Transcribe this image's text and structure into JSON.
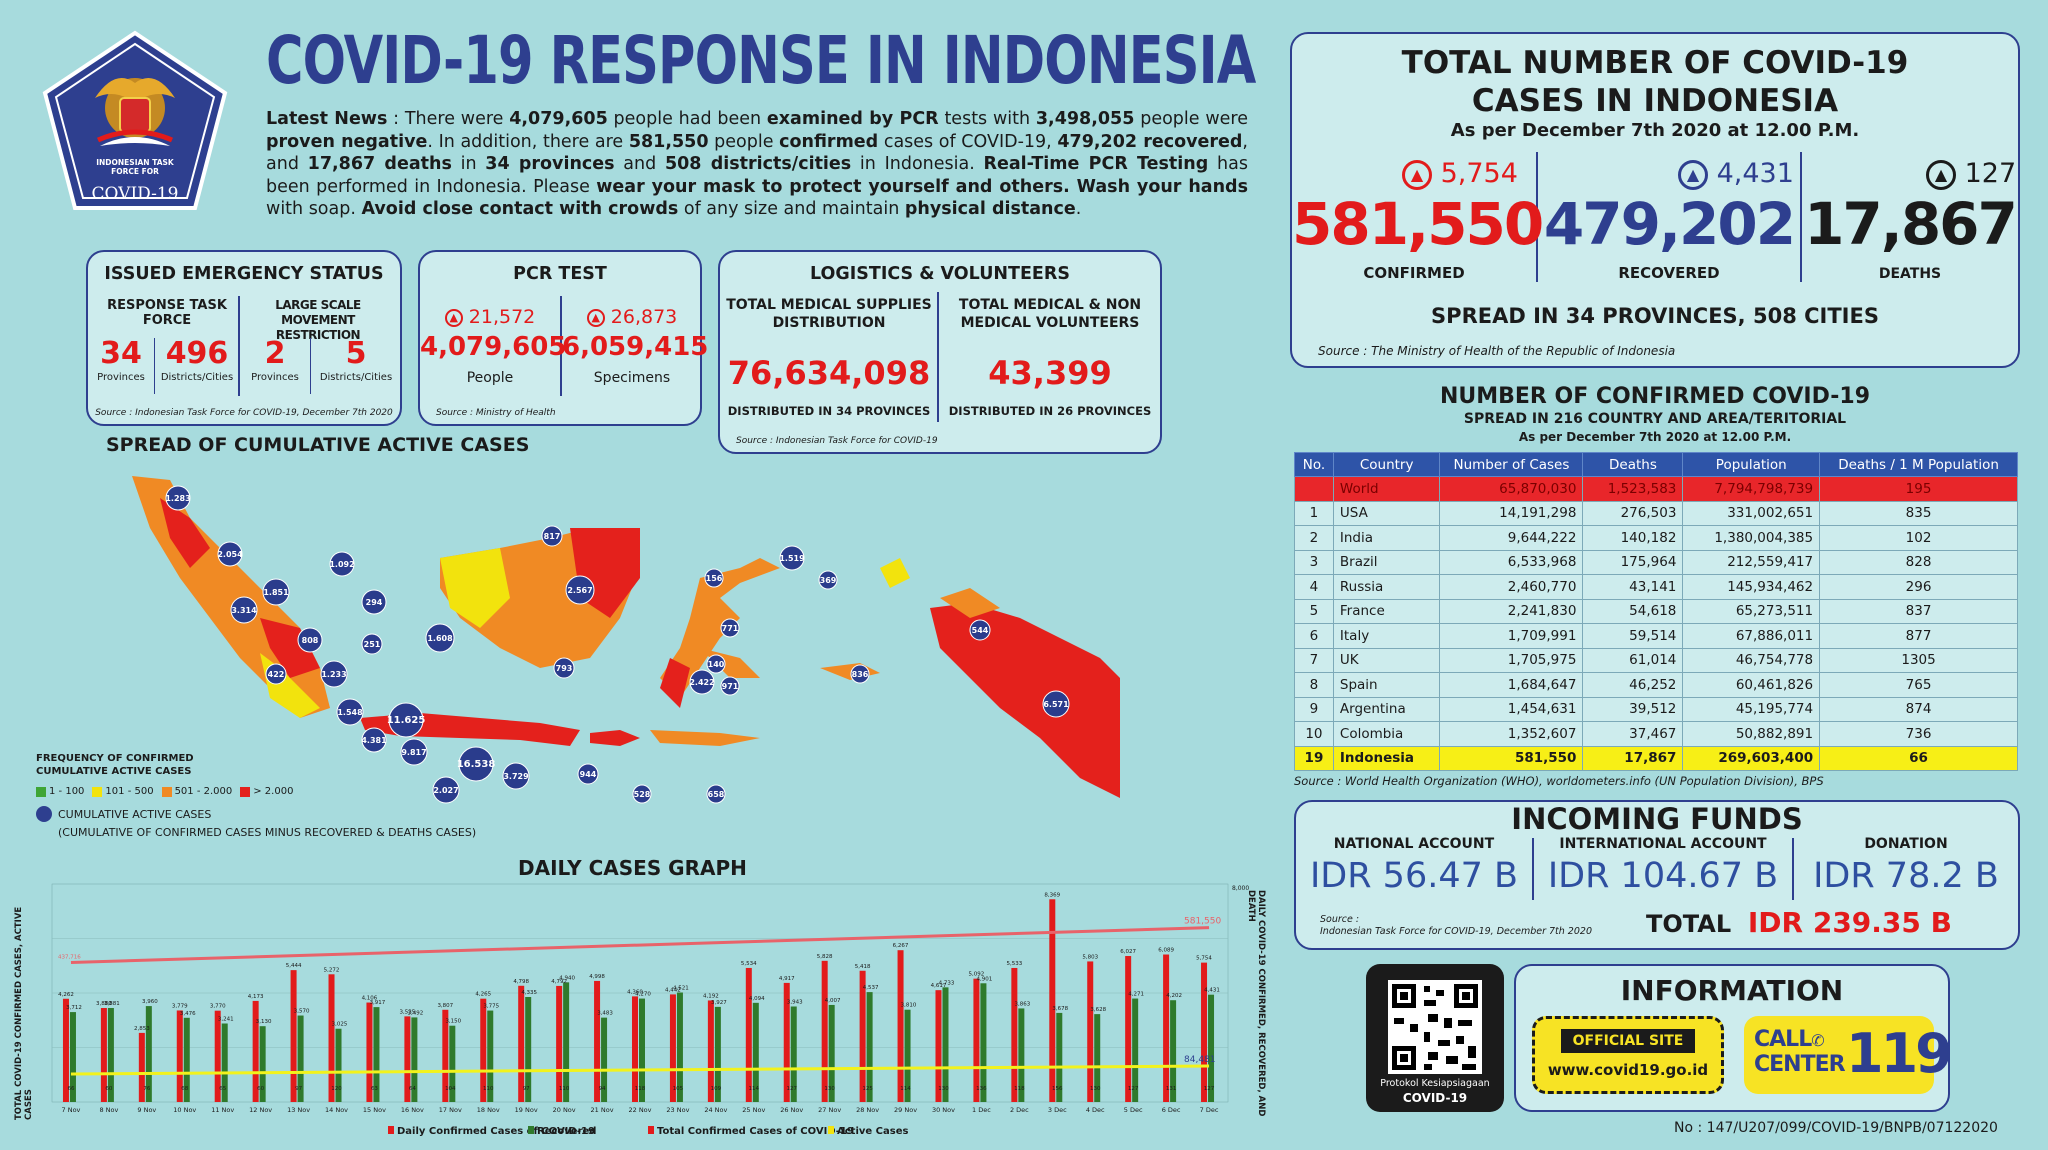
{
  "header": {
    "title": "COVID-19 RESPONSE IN INDONESIA",
    "logo_text_1": "INDONESIAN TASK",
    "logo_text_2": "FORCE FOR",
    "logo_text_3": "COVID-19",
    "news": [
      {
        "t": "Latest News",
        "b": true
      },
      {
        "t": " : There were ",
        "b": false
      },
      {
        "t": "4,079,605",
        "b": true
      },
      {
        "t": " people had been ",
        "b": false
      },
      {
        "t": "examined by PCR",
        "b": true
      },
      {
        "t": " tests with ",
        "b": false
      },
      {
        "t": "3,498,055",
        "b": true
      },
      {
        "t": " people were ",
        "b": false
      },
      {
        "t": "proven negative",
        "b": true
      },
      {
        "t": ". In addition, there are ",
        "b": false
      },
      {
        "t": "581,550",
        "b": true
      },
      {
        "t": " people ",
        "b": false
      },
      {
        "t": "confirmed",
        "b": true
      },
      {
        "t": " cases of COVID-19, ",
        "b": false
      },
      {
        "t": "479,202 recovered",
        "b": true
      },
      {
        "t": ", and ",
        "b": false
      },
      {
        "t": "17,867 deaths",
        "b": true
      },
      {
        "t": " in ",
        "b": false
      },
      {
        "t": "34 provinces",
        "b": true
      },
      {
        "t": " and ",
        "b": false
      },
      {
        "t": "508 districts/cities",
        "b": true
      },
      {
        "t": " in Indonesia. ",
        "b": false
      },
      {
        "t": "Real-Time PCR Testing",
        "b": true
      },
      {
        "t": " has been performed in Indonesia. Please ",
        "b": false
      },
      {
        "t": "wear your mask to protect yourself and others. Wash your hands",
        "b": true
      },
      {
        "t": " with soap. ",
        "b": false
      },
      {
        "t": "Avoid close contact with crowds",
        "b": true
      },
      {
        "t": " of any size and maintain ",
        "b": false
      },
      {
        "t": "physical distance",
        "b": true
      },
      {
        "t": ".",
        "b": false
      }
    ]
  },
  "emergency": {
    "title": "ISSUED EMERGENCY STATUS",
    "col1_label": "RESPONSE TASK FORCE",
    "col2_label": "LARGE SCALE MOVEMENT RESTRICTION",
    "v1": "34",
    "l1": "Provinces",
    "v2": "496",
    "l2": "Districts/Cities",
    "v3": "2",
    "l3": "Provinces",
    "v4": "5",
    "l4": "Districts/Cities",
    "source": "Source : Indonesian Task Force for COVID-19, December 7th 2020"
  },
  "pcr": {
    "title": "PCR TEST",
    "inc1": "21,572",
    "inc2": "26,873",
    "v1": "4,079,605",
    "l1": "People",
    "v2": "6,059,415",
    "l2": "Specimens",
    "source": "Source : Ministry of Health"
  },
  "logistics": {
    "title": "LOGISTICS & VOLUNTEERS",
    "c1_label": "TOTAL MEDICAL SUPPLIES DISTRIBUTION",
    "c2_label": "TOTAL MEDICAL & NON MEDICAL VOLUNTEERS",
    "v1": "76,634,098",
    "v2": "43,399",
    "d1": "DISTRIBUTED IN 34 PROVINCES",
    "d2": "DISTRIBUTED IN 26 PROVINCES",
    "source": "Source : Indonesian Task Force for COVID-19"
  },
  "total": {
    "title1": "TOTAL NUMBER OF COVID-19",
    "title2": "CASES IN INDONESIA",
    "subtitle": "As per December 7th 2020 at 12.00 P.M.",
    "confirmed_inc": "5,754",
    "confirmed": "581,550",
    "confirmed_label": "CONFIRMED",
    "recovered_inc": "4,431",
    "recovered": "479,202",
    "recovered_label": "RECOVERED",
    "deaths_inc": "127",
    "deaths": "17,867",
    "deaths_label": "DEATHS",
    "spread": "SPREAD IN 34 PROVINCES, 508 CITIES",
    "source": "Source : The Ministry of Health of the Republic of Indonesia"
  },
  "world": {
    "title": "NUMBER OF CONFIRMED COVID-19",
    "sub1": "SPREAD IN 216 COUNTRY AND AREA/TERITORIAL",
    "sub2": "As per December 7th 2020 at 12.00 P.M.",
    "headers": [
      "No.",
      "Country",
      "Number of Cases",
      "Deaths",
      "Population",
      "Deaths / 1 M Population"
    ],
    "rows": [
      [
        "",
        "World",
        "65,870,030",
        "1,523,583",
        "7,794,798,739",
        "195"
      ],
      [
        "1",
        "USA",
        "14,191,298",
        "276,503",
        "331,002,651",
        "835"
      ],
      [
        "2",
        "India",
        "9,644,222",
        "140,182",
        "1,380,004,385",
        "102"
      ],
      [
        "3",
        "Brazil",
        "6,533,968",
        "175,964",
        "212,559,417",
        "828"
      ],
      [
        "4",
        "Russia",
        "2,460,770",
        "43,141",
        "145,934,462",
        "296"
      ],
      [
        "5",
        "France",
        "2,241,830",
        "54,618",
        "65,273,511",
        "837"
      ],
      [
        "6",
        "Italy",
        "1,709,991",
        "59,514",
        "67,886,011",
        "877"
      ],
      [
        "7",
        "UK",
        "1,705,975",
        "61,014",
        "46,754,778",
        "1305"
      ],
      [
        "8",
        "Spain",
        "1,684,647",
        "46,252",
        "60,461,826",
        "765"
      ],
      [
        "9",
        "Argentina",
        "1,454,631",
        "39,512",
        "45,195,774",
        "874"
      ],
      [
        "10",
        "Colombia",
        "1,352,607",
        "37,467",
        "50,882,891",
        "736"
      ],
      [
        "19",
        "Indonesia",
        "581,550",
        "17,867",
        "269,603,400",
        "66"
      ]
    ],
    "source": "Source : World Health Organization (WHO), worldometers.info (UN Population Division), BPS"
  },
  "funds": {
    "title": "INCOMING FUNDS",
    "l1": "NATIONAL ACCOUNT",
    "v1": "IDR 56.47 B",
    "l2": "INTERNATIONAL ACCOUNT",
    "v2": "IDR 104.67 B",
    "l3": "DONATION",
    "v3": "IDR 78.2 B",
    "total_label": "TOTAL",
    "total": "IDR 239.35 B",
    "source1": "Source :",
    "source2": "Indonesian Task Force for COVID-19, December 7th 2020"
  },
  "info": {
    "title": "INFORMATION",
    "qr_l1": "Protokol Kesiapsiagaan",
    "qr_l2": "COVID-19",
    "site_label": "OFFICIAL SITE",
    "site": "www.covid19.go.id",
    "call1": "CALL",
    "call2": "CENTER",
    "call_num": "119",
    "doc_no": "No : 147/U207/099/COVID-19/BNPB/07122020"
  },
  "map": {
    "title": "SPREAD OF CUMULATIVE ACTIVE CASES",
    "legend_title1": "FREQUENCY OF CONFIRMED",
    "legend_title2": "CUMULATIVE ACTIVE CASES",
    "legend": [
      {
        "label": "1 - 100",
        "color": "#3fa535"
      },
      {
        "label": "101 - 500",
        "color": "#f2e30d"
      },
      {
        "label": "501 - 2.000",
        "color": "#f08a24"
      },
      {
        "label": "> 2.000",
        "color": "#e4211c"
      }
    ],
    "circle_label1": "CUMULATIVE ACTIVE CASES",
    "circle_label2": "(CUMULATIVE OF CONFIRMED CASES MINUS RECOVERED & DEATHS CASES)",
    "bubbles": [
      "1.283",
      "2.054",
      "1.092",
      "1.851",
      "3.314",
      "808",
      "422",
      "1.233",
      "251",
      "1.548",
      "11.625",
      "4.381",
      "9.817",
      "16.538",
      "2.027",
      "3.729",
      "944",
      "528",
      "658",
      "294",
      "1.608",
      "817",
      "2.567",
      "793",
      "156",
      "1.519",
      "369",
      "771",
      "140",
      "2.422",
      "971",
      "836",
      "544",
      "6.571"
    ]
  },
  "chart_data": {
    "type": "bar",
    "title": "DAILY CASES GRAPH",
    "ylabel_left": "TOTAL COVID-19 CONFIRMED CASES, ACTIVE CASES",
    "ylabel_right": "DAILY COVID-19 CONFIRMED, RECOVERED, AND DEATH",
    "categories": [
      "7 Nov",
      "8 Nov",
      "9 Nov",
      "10 Nov",
      "11 Nov",
      "12 Nov",
      "13 Nov",
      "14 Nov",
      "15 Nov",
      "16 Nov",
      "17 Nov",
      "18 Nov",
      "19 Nov",
      "20 Nov",
      "21 Nov",
      "22 Nov",
      "23 Nov",
      "24 Nov",
      "25 Nov",
      "26 Nov",
      "27 Nov",
      "28 Nov",
      "29 Nov",
      "30 Nov",
      "1 Dec",
      "2 Dec",
      "3 Dec",
      "4 Dec",
      "5 Dec",
      "6 Dec",
      "7 Dec"
    ],
    "series": [
      {
        "name": "Daily Confirmed Cases of COVID-19",
        "color": "#e21b1b",
        "values": [
          4262,
          3880,
          2853,
          3779,
          3770,
          4173,
          5444,
          5272,
          4106,
          3535,
          3807,
          4265,
          4798,
          4792,
          4998,
          4360,
          4442,
          4192,
          5534,
          4917,
          5828,
          5418,
          6267,
          4617,
          5092,
          5533,
          8369,
          5803,
          6027,
          6089,
          5754
        ]
      },
      {
        "name": "Recovered",
        "color": "#2f7a2c",
        "values": [
          3712,
          3881,
          3960,
          3476,
          3241,
          3130,
          3570,
          3025,
          3917,
          3492,
          3150,
          3775,
          4335,
          4940,
          3483,
          4270,
          4521,
          3927,
          4094,
          3943,
          4007,
          4537,
          3810,
          4733,
          4901,
          3863,
          3678,
          3628,
          4271,
          4202,
          4431
        ]
      },
      {
        "name": "Deaths",
        "color": "#e21b1b",
        "values": [
          66,
          60,
          76,
          68,
          65,
          60,
          97,
          120,
          63,
          64,
          104,
          110,
          97,
          110,
          94,
          118,
          105,
          109,
          114,
          127,
          130,
          125,
          114,
          130,
          136,
          118,
          156,
          130,
          127,
          131,
          127
        ]
      }
    ],
    "right_ymax": "8,000",
    "total_start": "437,716",
    "total_end": "581,550",
    "active_end": "84,481",
    "legend": [
      "Daily Confirmed Cases of COVID-19",
      "Recovered",
      "Total Confirmed Cases of COVID-19",
      "Active Cases"
    ]
  }
}
